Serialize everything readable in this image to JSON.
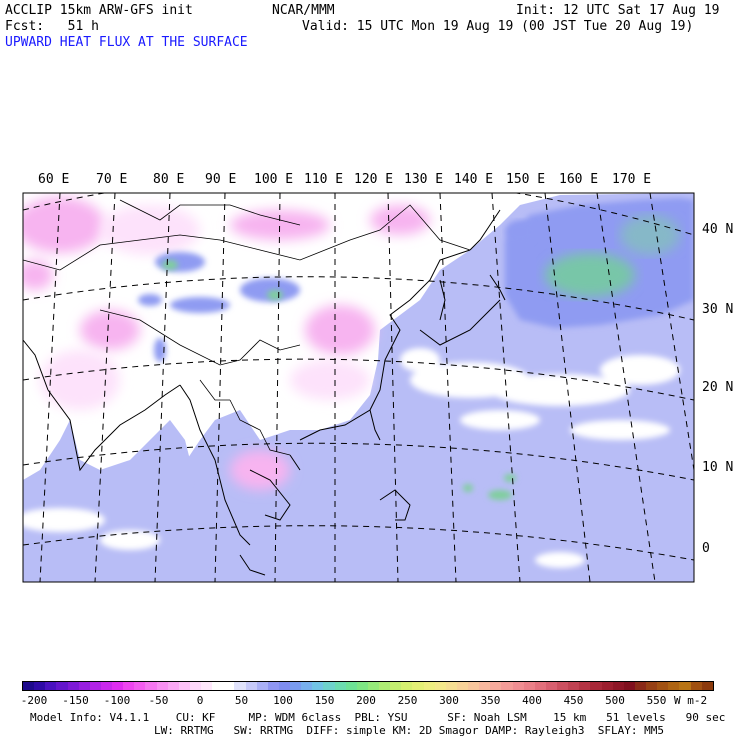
{
  "header": {
    "model": "ACCLIP 15km ARW-GFS init",
    "org": "NCAR/MMM",
    "init": "Init: 12 UTC Sat 17 Aug 19",
    "fcst": "Fcst:   51 h",
    "valid": "Valid: 15 UTC Mon 19 Aug 19 (00 JST Tue 20 Aug 19)",
    "field": "UPWARD HEAT FLUX AT THE SURFACE"
  },
  "map": {
    "lon_labels": [
      "60 E",
      "70 E",
      "80 E",
      "90 E",
      "100 E",
      "110 E",
      "120 E",
      "130 E",
      "140 E",
      "150 E",
      "160 E",
      "170 E"
    ],
    "lat_labels": [
      "40 N",
      "30 N",
      "20 N",
      "10 N",
      "0"
    ]
  },
  "colorbar": {
    "ticks": [
      "-200",
      "-150",
      "-100",
      "-50",
      "0",
      "50",
      "100",
      "150",
      "200",
      "250",
      "300",
      "350",
      "400",
      "450",
      "500",
      "550"
    ],
    "units": "W m-2",
    "colors": [
      "#1e0a8c",
      "#2f0ba6",
      "#4a12bf",
      "#6416cc",
      "#7e1ad6",
      "#981ee0",
      "#b223e6",
      "#c928ec",
      "#df2df0",
      "#ee45f0",
      "#f35cf0",
      "#f576f0",
      "#f890f2",
      "#faa8f4",
      "#fcc2f7",
      "#fdd8fa",
      "#ffe8fc",
      "#ffffff",
      "#ffffff",
      "#e0e2fb",
      "#c6c9f9",
      "#aab0f6",
      "#8f96f2",
      "#7f8df0",
      "#7a9cf0",
      "#78b0ee",
      "#72c4e6",
      "#6ed2cc",
      "#6cdcb0",
      "#6ee296",
      "#7ee684",
      "#96ea7a",
      "#aeec74",
      "#c4ee70",
      "#d6f070",
      "#e4f076",
      "#eeee80",
      "#f4e88a",
      "#f6de92",
      "#f8d298",
      "#f8c69c",
      "#f8b89e",
      "#f6aa9c",
      "#f49c98",
      "#f08e92",
      "#ea8088",
      "#e2707c",
      "#d86070",
      "#cc5060",
      "#c04252",
      "#b43444",
      "#a82838",
      "#9c1e2e",
      "#8e1626",
      "#80101e",
      "#8a2a18",
      "#964014",
      "#a25212",
      "#ae6412",
      "#b87414",
      "#a05010",
      "#8c3a0c"
    ]
  },
  "footer": {
    "line1": "Model Info: V4.1.1    CU: KF     MP: WDM 6class  PBL: YSU      SF: Noah LSM    15 km   51 levels   90 sec",
    "line2": "LW: RRTMG   SW: RRTMG  DIFF: simple KM: 2D Smagor DAMP: Rayleigh3  SFLAY: MM5"
  }
}
